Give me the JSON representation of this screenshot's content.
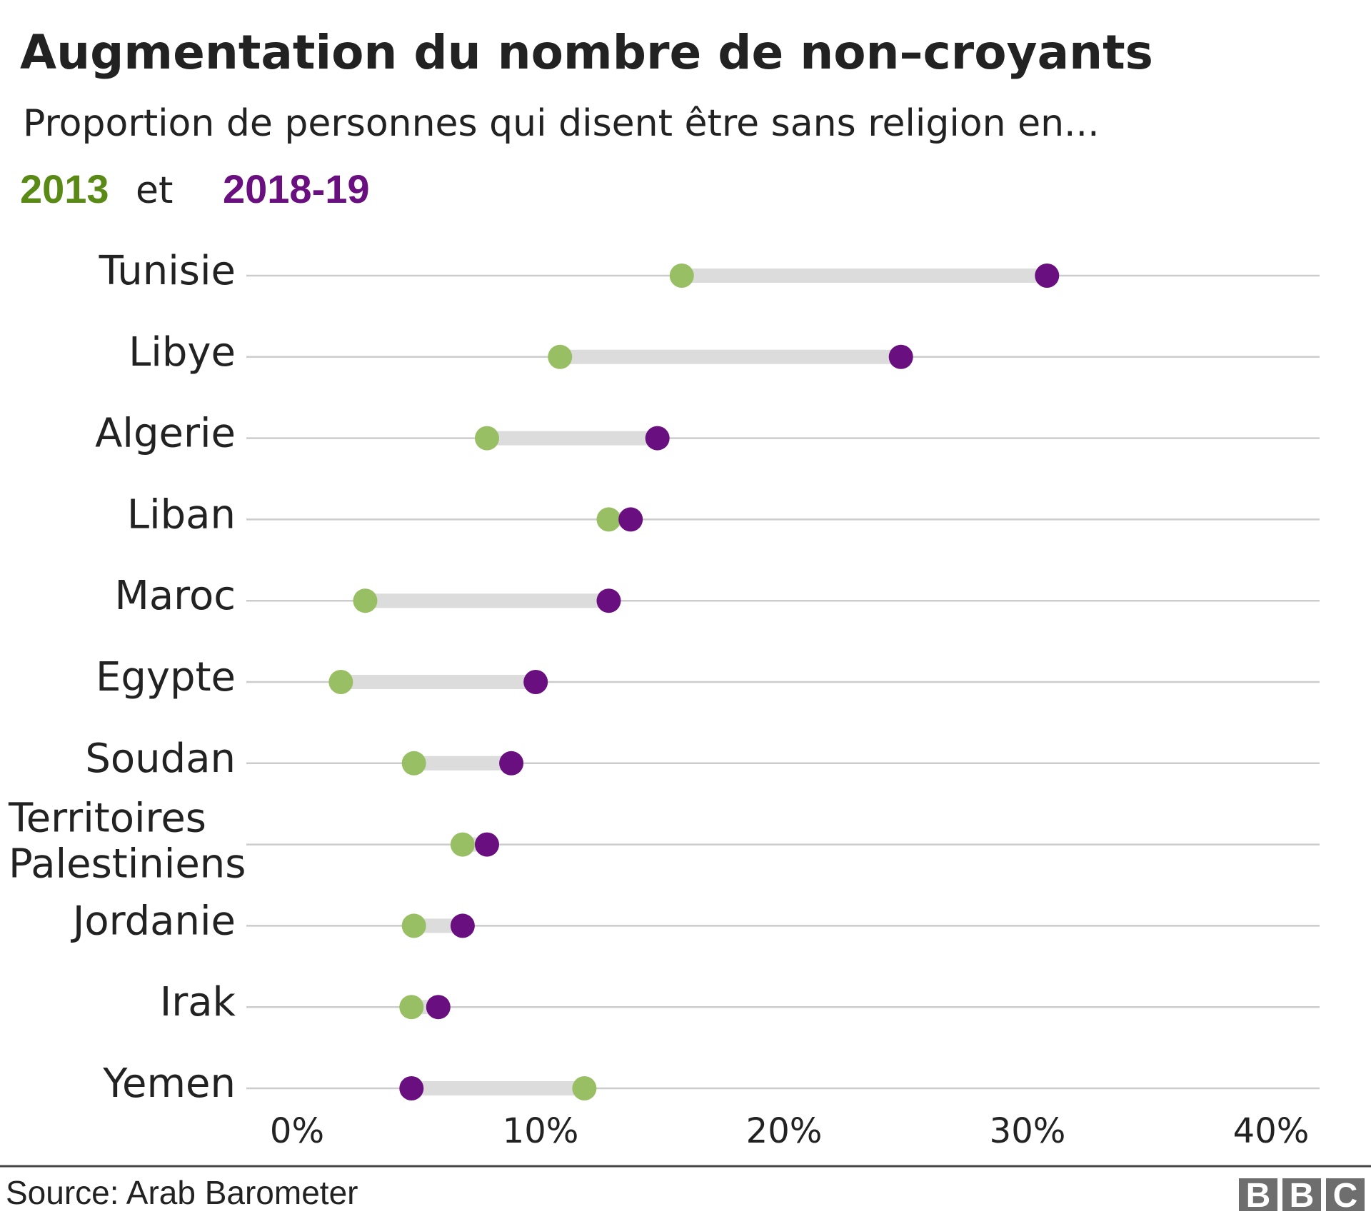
{
  "chart_data": {
    "type": "dumbbell",
    "title": "Augmentation du nombre de non–croyants",
    "subtitle": "Proportion de personnes qui disent être sans religion en...",
    "legend": {
      "series_a": "2013",
      "connector": "et",
      "series_b": "2018-19"
    },
    "categories": [
      [
        "Tunisie"
      ],
      [
        "Libye"
      ],
      [
        "Algerie"
      ],
      [
        "Liban"
      ],
      [
        "Maroc"
      ],
      [
        "Egypte"
      ],
      [
        "Soudan"
      ],
      [
        "Territoires",
        "Palestiniens"
      ],
      [
        "Jordanie"
      ],
      [
        "Irak"
      ],
      [
        "Yemen"
      ]
    ],
    "series": [
      {
        "name": "2013",
        "color": "#98bf64",
        "values": [
          15.8,
          10.8,
          7.8,
          12.8,
          2.8,
          1.8,
          4.8,
          6.8,
          4.8,
          4.7,
          11.8
        ]
      },
      {
        "name": "2018-19",
        "color": "#6a0f80",
        "values": [
          30.8,
          24.8,
          14.8,
          13.7,
          12.8,
          9.8,
          8.8,
          7.8,
          6.8,
          5.8,
          4.7
        ]
      }
    ],
    "xlim": [
      0,
      40
    ],
    "xticks": [
      0,
      10,
      20,
      30,
      40
    ],
    "xtick_labels": [
      "0%",
      "10%",
      "20%",
      "30%",
      "40%"
    ],
    "grid": true,
    "connector_color": "#dcdcdc",
    "source": "Source: Arab Barometer",
    "logo": "BBC"
  }
}
